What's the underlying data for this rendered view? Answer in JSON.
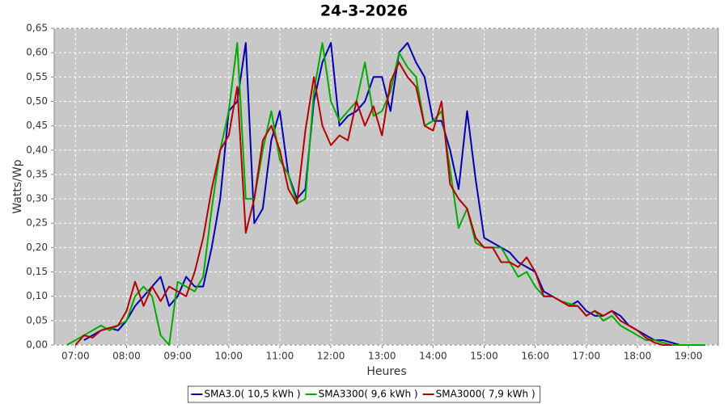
{
  "chart_data": {
    "type": "line",
    "title": "24-3-2026",
    "x_label": "Heures",
    "y_label": "Watts/Wp",
    "grid": true,
    "legend": "bottom",
    "xlim": [
      "06:35",
      "19:35"
    ],
    "xticks": [
      "07:00",
      "08:00",
      "09:00",
      "10:00",
      "11:00",
      "12:00",
      "13:00",
      "14:00",
      "15:00",
      "16:00",
      "17:00",
      "18:00",
      "19:00"
    ],
    "ylim": [
      0,
      0.65
    ],
    "yticks": [
      {
        "value": 0,
        "label": "0,00"
      },
      {
        "value": 0.05,
        "label": "0,05"
      },
      {
        "value": 0.1,
        "label": "0,10"
      },
      {
        "value": 0.15,
        "label": "0,15"
      },
      {
        "value": 0.2,
        "label": "0,20"
      },
      {
        "value": 0.25,
        "label": "0,25"
      },
      {
        "value": 0.3,
        "label": "0,30"
      },
      {
        "value": 0.35,
        "label": "0,35"
      },
      {
        "value": 0.4,
        "label": "0,40"
      },
      {
        "value": 0.45,
        "label": "0,45"
      },
      {
        "value": 0.5,
        "label": "0,50"
      },
      {
        "value": 0.55,
        "label": "0,55"
      },
      {
        "value": 0.6,
        "label": "0,60"
      },
      {
        "value": 0.65,
        "label": "0,65"
      }
    ],
    "x": [
      "06:50",
      "07:00",
      "07:10",
      "07:20",
      "07:30",
      "07:40",
      "07:50",
      "08:00",
      "08:10",
      "08:20",
      "08:30",
      "08:40",
      "08:50",
      "09:00",
      "09:10",
      "09:20",
      "09:30",
      "09:40",
      "09:50",
      "10:00",
      "10:10",
      "10:20",
      "10:30",
      "10:40",
      "10:50",
      "11:00",
      "11:10",
      "11:20",
      "11:30",
      "11:40",
      "11:50",
      "12:00",
      "12:10",
      "12:20",
      "12:30",
      "12:40",
      "12:50",
      "13:00",
      "13:10",
      "13:20",
      "13:30",
      "13:40",
      "13:50",
      "14:00",
      "14:10",
      "14:20",
      "14:30",
      "14:40",
      "14:50",
      "15:00",
      "15:10",
      "15:20",
      "15:30",
      "15:40",
      "15:50",
      "16:00",
      "16:10",
      "16:20",
      "16:30",
      "16:40",
      "16:50",
      "17:00",
      "17:10",
      "17:20",
      "17:30",
      "17:40",
      "17:50",
      "18:00",
      "18:10",
      "18:20",
      "18:30",
      "18:40",
      "18:50",
      "19:00",
      "19:10",
      "19:20"
    ],
    "series": [
      {
        "name": "SMA3.0( 10,5 kWh )",
        "color": "#0000b4",
        "values": [
          null,
          null,
          0.01,
          0.02,
          0.03,
          0.035,
          0.03,
          0.05,
          0.08,
          0.1,
          0.12,
          0.14,
          0.08,
          0.1,
          0.14,
          0.12,
          0.12,
          0.2,
          0.3,
          0.48,
          0.5,
          0.62,
          0.25,
          0.28,
          0.42,
          0.48,
          0.35,
          0.3,
          0.32,
          0.5,
          0.58,
          0.62,
          0.45,
          0.47,
          0.48,
          0.5,
          0.55,
          0.55,
          0.48,
          0.6,
          0.62,
          0.58,
          0.55,
          0.46,
          0.46,
          0.4,
          0.32,
          0.48,
          0.34,
          0.22,
          0.21,
          0.2,
          0.19,
          0.17,
          0.16,
          0.15,
          0.11,
          0.1,
          0.09,
          0.08,
          0.09,
          0.07,
          0.06,
          0.06,
          0.07,
          0.06,
          0.04,
          0.03,
          0.02,
          0.01,
          0.01,
          0.005,
          0,
          null,
          null,
          null
        ]
      },
      {
        "name": "SMA3300( 9,6 kWh )",
        "color": "#00aa00",
        "values": [
          0,
          0.01,
          0.02,
          0.03,
          0.04,
          0.03,
          0.04,
          0.05,
          0.1,
          0.12,
          0.1,
          0.02,
          0,
          0.13,
          0.12,
          0.11,
          0.14,
          0.28,
          0.4,
          0.48,
          0.62,
          0.3,
          0.3,
          0.4,
          0.48,
          0.38,
          0.35,
          0.29,
          0.3,
          0.52,
          0.62,
          0.5,
          0.46,
          0.48,
          0.5,
          0.58,
          0.47,
          0.48,
          0.52,
          0.6,
          0.57,
          0.55,
          0.45,
          0.46,
          0.48,
          0.36,
          0.24,
          0.28,
          0.21,
          0.2,
          0.2,
          0.2,
          0.17,
          0.14,
          0.15,
          0.12,
          0.1,
          0.1,
          0.09,
          0.085,
          0.08,
          0.06,
          0.07,
          0.05,
          0.06,
          0.04,
          0.03,
          0.02,
          0.01,
          0.01,
          0.005,
          0,
          0,
          0,
          0,
          0
        ]
      },
      {
        "name": "SMA3000( 7,9 kWh )",
        "color": "#b40000",
        "values": [
          null,
          0,
          0.02,
          0.015,
          0.03,
          0.035,
          0.04,
          0.07,
          0.13,
          0.08,
          0.12,
          0.09,
          0.12,
          0.11,
          0.1,
          0.15,
          0.22,
          0.32,
          0.4,
          0.43,
          0.53,
          0.23,
          0.3,
          0.42,
          0.45,
          0.4,
          0.32,
          0.29,
          0.44,
          0.55,
          0.45,
          0.41,
          0.43,
          0.42,
          0.5,
          0.45,
          0.49,
          0.43,
          0.54,
          0.58,
          0.55,
          0.53,
          0.45,
          0.44,
          0.5,
          0.33,
          0.3,
          0.28,
          0.22,
          0.2,
          0.2,
          0.17,
          0.17,
          0.16,
          0.18,
          0.15,
          0.1,
          0.1,
          0.09,
          0.08,
          0.08,
          0.06,
          0.07,
          0.06,
          0.07,
          0.05,
          0.04,
          0.03,
          0.015,
          0.005,
          0,
          0,
          null,
          null,
          null,
          null
        ]
      }
    ]
  }
}
